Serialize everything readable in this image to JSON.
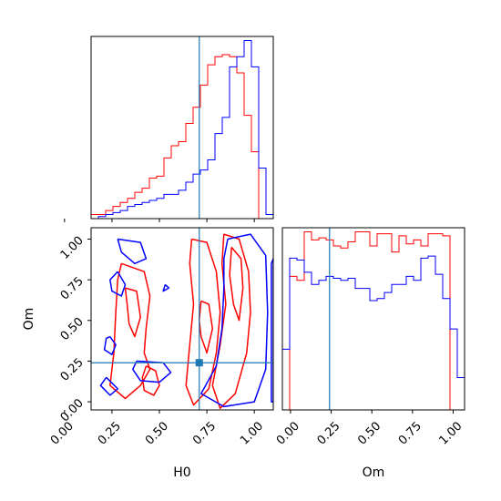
{
  "chart_data": {
    "type": "corner",
    "parameters": [
      "H0",
      "Om"
    ],
    "axis_labels": {
      "H0": "H0",
      "Om": "Om"
    },
    "ranges": {
      "H0": [
        0.14,
        1.1
      ],
      "Om": [
        -0.05,
        1.07
      ]
    },
    "ticks": [
      0.0,
      0.25,
      0.5,
      0.75,
      1.0
    ],
    "tick_labels": [
      "0.00",
      "0.25",
      "0.50",
      "0.75",
      "1.00"
    ],
    "truth": {
      "H0": 0.71,
      "Om": 0.24,
      "color": "#1f77b4"
    },
    "series": [
      {
        "color": "#ff0000",
        "hist_H0": {
          "edges": [
            0.14,
            0.1784,
            0.2168,
            0.2552,
            0.2936,
            0.332,
            0.3704,
            0.4088,
            0.4472,
            0.4856,
            0.524,
            0.5624,
            0.6008,
            0.6392,
            0.6776,
            0.716,
            0.7544,
            0.7928,
            0.8312,
            0.8696,
            0.908,
            0.9464,
            0.9848,
            1.0232,
            1.0616,
            1.1
          ],
          "counts": [
            0.02,
            0.02,
            0.04,
            0.06,
            0.08,
            0.1,
            0.13,
            0.15,
            0.2,
            0.21,
            0.3,
            0.36,
            0.38,
            0.47,
            0.55,
            0.66,
            0.76,
            0.8,
            0.81,
            0.8,
            0.72,
            0.51,
            0.33,
            0.0,
            0.0
          ]
        },
        "hist_Om": {
          "edges": [
            -0.05,
            -0.0052,
            0.0396,
            0.0844,
            0.1292,
            0.174,
            0.2188,
            0.2636,
            0.3084,
            0.3532,
            0.398,
            0.4428,
            0.4876,
            0.5324,
            0.5772,
            0.622,
            0.6668,
            0.7116,
            0.7564,
            0.8012,
            0.846,
            0.8908,
            0.9356,
            0.9804,
            1.0252,
            1.07
          ],
          "counts": [
            0.0,
            0.66,
            0.64,
            0.88,
            0.84,
            0.85,
            0.84,
            0.81,
            0.8,
            0.83,
            0.88,
            0.88,
            0.81,
            0.87,
            0.87,
            0.78,
            0.86,
            0.82,
            0.84,
            0.81,
            0.87,
            0.87,
            0.86,
            0.0,
            0.0
          ]
        },
        "contours": [
          [
            [
              0.3,
              0.85
            ],
            [
              0.42,
              0.8
            ],
            [
              0.45,
              0.65
            ],
            [
              0.43,
              0.45
            ],
            [
              0.42,
              0.3
            ],
            [
              0.45,
              0.2
            ],
            [
              0.4,
              0.1
            ],
            [
              0.32,
              0.02
            ],
            [
              0.24,
              0.1
            ],
            [
              0.26,
              0.3
            ],
            [
              0.27,
              0.55
            ],
            [
              0.28,
              0.75
            ],
            [
              0.3,
              0.85
            ]
          ],
          [
            [
              0.32,
              0.7
            ],
            [
              0.38,
              0.68
            ],
            [
              0.4,
              0.52
            ],
            [
              0.37,
              0.4
            ],
            [
              0.34,
              0.48
            ],
            [
              0.33,
              0.6
            ],
            [
              0.32,
              0.7
            ]
          ],
          [
            [
              0.43,
              0.22
            ],
            [
              0.48,
              0.19
            ],
            [
              0.5,
              0.1
            ],
            [
              0.47,
              0.04
            ],
            [
              0.42,
              0.07
            ],
            [
              0.41,
              0.15
            ],
            [
              0.43,
              0.22
            ]
          ],
          [
            [
              0.67,
              1.0
            ],
            [
              0.75,
              0.98
            ],
            [
              0.8,
              0.8
            ],
            [
              0.82,
              0.55
            ],
            [
              0.8,
              0.3
            ],
            [
              0.76,
              0.08
            ],
            [
              0.68,
              -0.02
            ],
            [
              0.64,
              0.1
            ],
            [
              0.66,
              0.35
            ],
            [
              0.68,
              0.6
            ],
            [
              0.66,
              0.85
            ],
            [
              0.67,
              1.0
            ]
          ],
          [
            [
              0.72,
              0.62
            ],
            [
              0.76,
              0.6
            ],
            [
              0.78,
              0.45
            ],
            [
              0.75,
              0.3
            ],
            [
              0.72,
              0.4
            ],
            [
              0.71,
              0.5
            ],
            [
              0.72,
              0.62
            ]
          ],
          [
            [
              0.84,
              1.03
            ],
            [
              0.92,
              1.0
            ],
            [
              0.97,
              0.8
            ],
            [
              0.98,
              0.55
            ],
            [
              0.96,
              0.3
            ],
            [
              0.9,
              0.05
            ],
            [
              0.82,
              -0.04
            ],
            [
              0.78,
              0.1
            ],
            [
              0.82,
              0.35
            ],
            [
              0.85,
              0.6
            ],
            [
              0.83,
              0.85
            ],
            [
              0.84,
              1.03
            ]
          ],
          [
            [
              0.88,
              0.95
            ],
            [
              0.93,
              0.88
            ],
            [
              0.94,
              0.7
            ],
            [
              0.92,
              0.5
            ],
            [
              0.89,
              0.6
            ],
            [
              0.87,
              0.78
            ],
            [
              0.88,
              0.95
            ]
          ]
        ]
      },
      {
        "color": "#0000ff",
        "hist_H0": {
          "edges": [
            0.14,
            0.1784,
            0.2168,
            0.2552,
            0.2936,
            0.332,
            0.3704,
            0.4088,
            0.4472,
            0.4856,
            0.524,
            0.5624,
            0.6008,
            0.6392,
            0.6776,
            0.716,
            0.7544,
            0.7928,
            0.8312,
            0.8696,
            0.908,
            0.9464,
            0.9848,
            1.0232,
            1.0616,
            1.1
          ],
          "counts": [
            0.0,
            0.01,
            0.02,
            0.03,
            0.04,
            0.06,
            0.07,
            0.08,
            0.09,
            0.1,
            0.12,
            0.12,
            0.14,
            0.18,
            0.22,
            0.24,
            0.29,
            0.42,
            0.5,
            0.75,
            0.8,
            0.88,
            0.75,
            0.25,
            0.02
          ]
        },
        "hist_Om": {
          "edges": [
            -0.05,
            -0.0052,
            0.0396,
            0.0844,
            0.1292,
            0.174,
            0.2188,
            0.2636,
            0.3084,
            0.3532,
            0.398,
            0.4428,
            0.4876,
            0.5324,
            0.5772,
            0.622,
            0.6668,
            0.7116,
            0.7564,
            0.8012,
            0.846,
            0.8908,
            0.9356,
            0.9804,
            1.0252,
            1.07
          ],
          "counts": [
            0.3,
            0.75,
            0.74,
            0.68,
            0.62,
            0.64,
            0.66,
            0.65,
            0.64,
            0.65,
            0.6,
            0.6,
            0.54,
            0.55,
            0.58,
            0.62,
            0.62,
            0.66,
            0.64,
            0.75,
            0.76,
            0.67,
            0.55,
            0.4,
            0.16
          ]
        },
        "contours": [
          [
            [
              0.28,
              1.0
            ],
            [
              0.4,
              0.98
            ],
            [
              0.43,
              0.88
            ],
            [
              0.37,
              0.85
            ],
            [
              0.3,
              0.92
            ],
            [
              0.28,
              1.0
            ]
          ],
          [
            [
              0.28,
              0.8
            ],
            [
              0.32,
              0.72
            ],
            [
              0.3,
              0.65
            ],
            [
              0.25,
              0.68
            ],
            [
              0.24,
              0.75
            ],
            [
              0.28,
              0.8
            ]
          ],
          [
            [
              0.24,
              0.4
            ],
            [
              0.27,
              0.35
            ],
            [
              0.25,
              0.29
            ],
            [
              0.21,
              0.32
            ],
            [
              0.22,
              0.39
            ],
            [
              0.24,
              0.4
            ]
          ],
          [
            [
              0.22,
              0.15
            ],
            [
              0.28,
              0.08
            ],
            [
              0.24,
              0.04
            ],
            [
              0.19,
              0.1
            ],
            [
              0.22,
              0.15
            ]
          ],
          [
            [
              0.38,
              0.25
            ],
            [
              0.52,
              0.24
            ],
            [
              0.56,
              0.18
            ],
            [
              0.5,
              0.12
            ],
            [
              0.4,
              0.13
            ],
            [
              0.36,
              0.2
            ],
            [
              0.38,
              0.25
            ]
          ],
          [
            [
              0.53,
              0.72
            ],
            [
              0.55,
              0.7
            ],
            [
              0.52,
              0.68
            ],
            [
              0.53,
              0.72
            ]
          ],
          [
            [
              0.86,
              1.0
            ],
            [
              0.98,
              1.03
            ],
            [
              1.06,
              0.9
            ],
            [
              1.07,
              0.55
            ],
            [
              1.06,
              0.2
            ],
            [
              1.0,
              0.0
            ],
            [
              0.84,
              -0.03
            ],
            [
              0.72,
              0.05
            ],
            [
              0.8,
              0.22
            ],
            [
              0.83,
              0.45
            ],
            [
              0.84,
              0.7
            ],
            [
              0.84,
              0.88
            ],
            [
              0.86,
              1.0
            ]
          ],
          [
            [
              1.09,
              0.85
            ],
            [
              1.1,
              0.88
            ],
            [
              1.1,
              0.0
            ],
            [
              1.09,
              0.0
            ],
            [
              1.09,
              0.85
            ]
          ]
        ]
      }
    ]
  }
}
